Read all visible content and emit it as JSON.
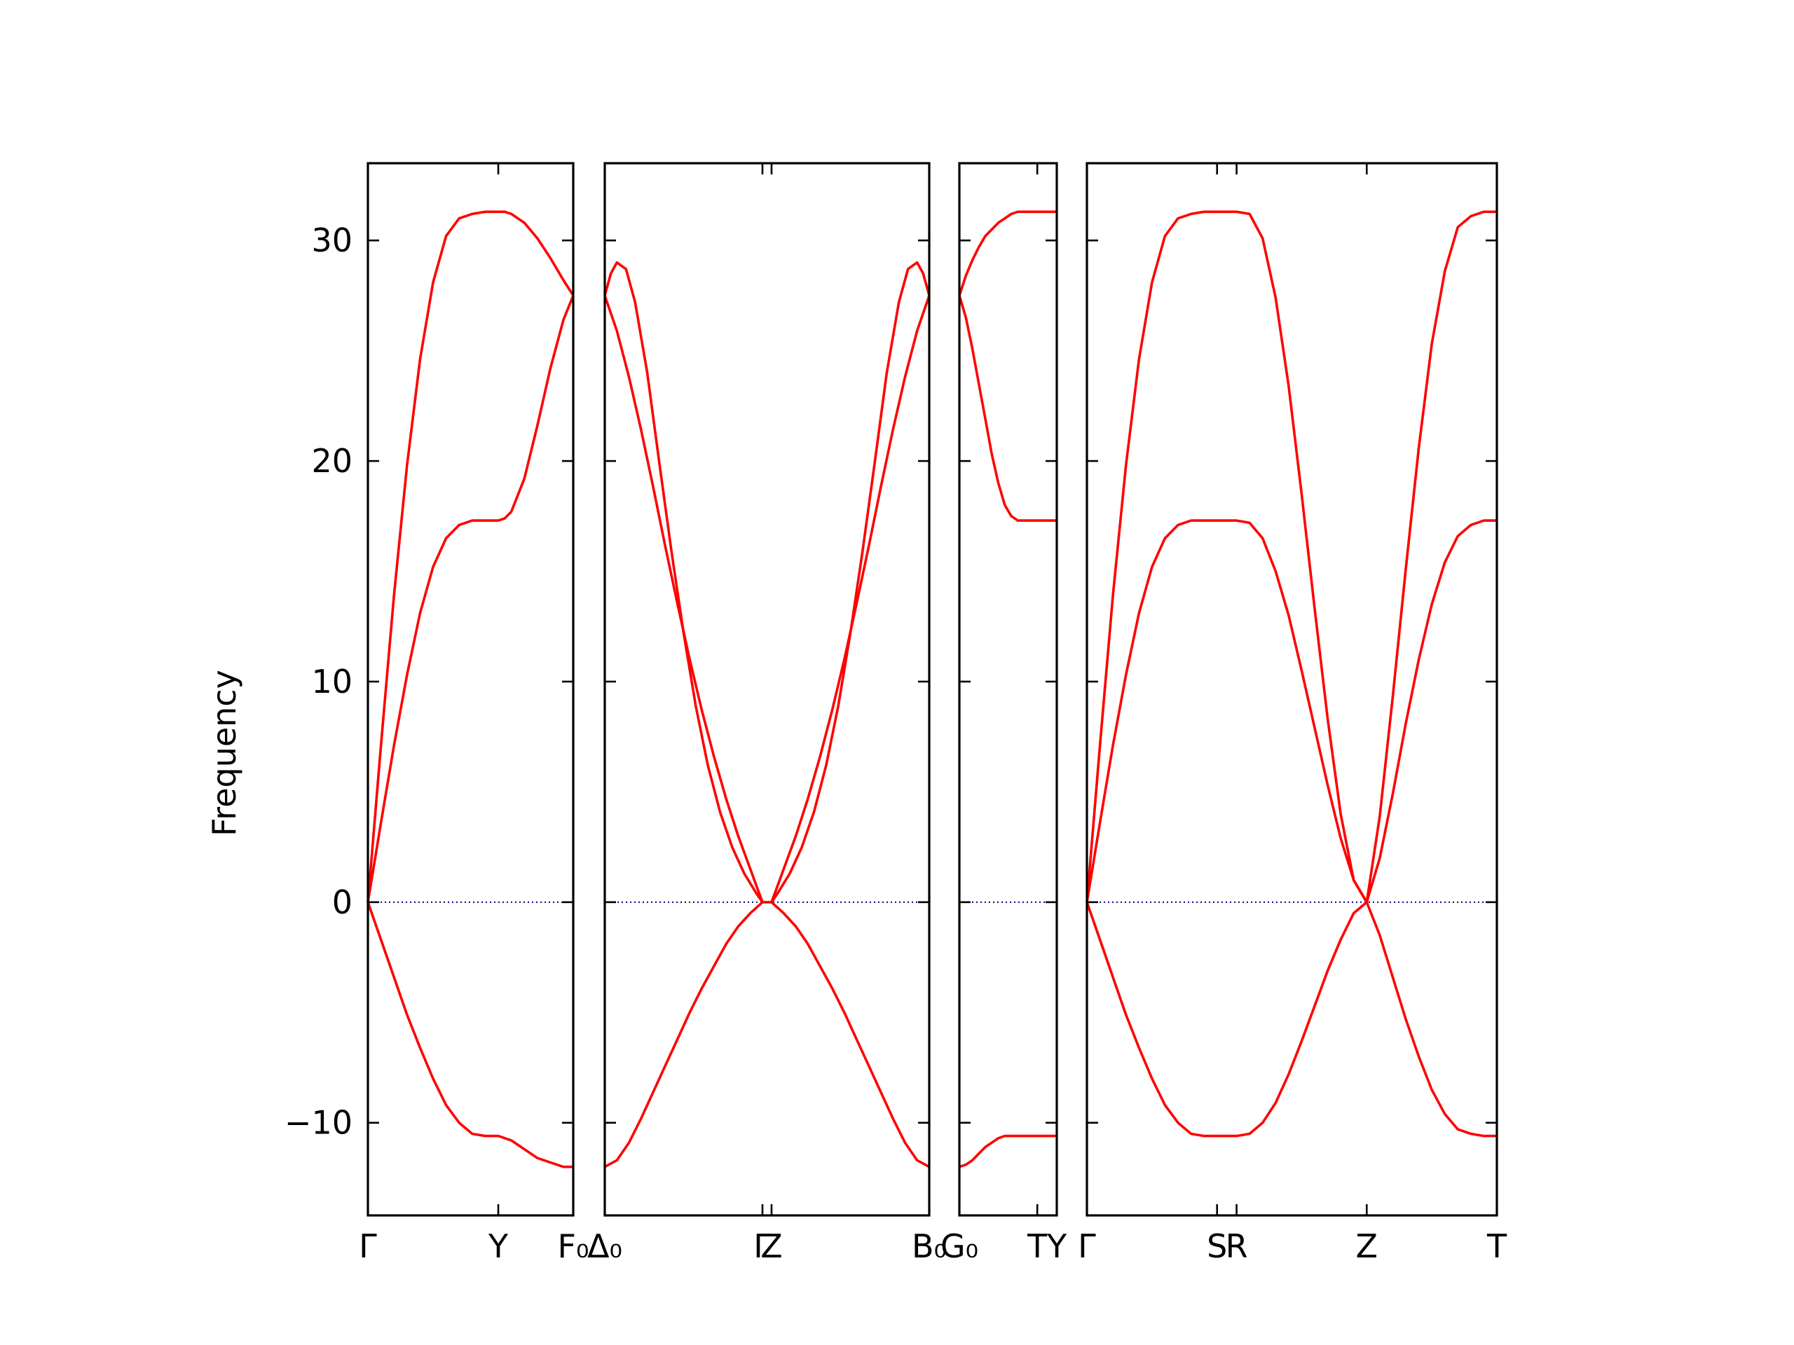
{
  "chart_data": {
    "type": "line",
    "title": "",
    "xlabel": "",
    "ylabel": "Frequency",
    "ylim": [
      -14.2,
      33.5
    ],
    "yticks": [
      -10,
      0,
      10,
      20,
      30
    ],
    "ytick_labels": [
      "−10",
      "0",
      "10",
      "20",
      "30"
    ],
    "grid": false,
    "line_color": "#ff0000",
    "zero_line_color": "#00008b",
    "series": [
      {
        "segment": 1,
        "labels": [
          {
            "x": 0.0,
            "text": "Γ"
          },
          {
            "x": 1.0,
            "text": "Y"
          },
          {
            "x": 1.575,
            "text": "F₀"
          }
        ],
        "bands": [
          {
            "x": [
              0,
              0.1,
              0.2,
              0.3,
              0.4,
              0.5,
              0.6,
              0.7,
              0.8,
              0.9,
              1.0,
              1.05,
              1.1,
              1.2,
              1.3,
              1.4,
              1.5,
              1.575
            ],
            "y": [
              0,
              7.1,
              13.9,
              19.8,
              24.6,
              28.1,
              30.2,
              31.0,
              31.2,
              31.3,
              31.3,
              31.3,
              31.2,
              30.8,
              30.1,
              29.2,
              28.2,
              27.5
            ]
          },
          {
            "x": [
              0,
              0.1,
              0.2,
              0.3,
              0.4,
              0.5,
              0.6,
              0.7,
              0.8,
              0.9,
              1.0,
              1.05,
              1.1,
              1.2,
              1.3,
              1.4,
              1.5,
              1.575
            ],
            "y": [
              0,
              3.6,
              7.1,
              10.3,
              13.1,
              15.2,
              16.5,
              17.1,
              17.3,
              17.3,
              17.3,
              17.4,
              17.7,
              19.2,
              21.6,
              24.2,
              26.4,
              27.5
            ]
          },
          {
            "x": [
              0,
              0.1,
              0.2,
              0.3,
              0.4,
              0.5,
              0.6,
              0.7,
              0.8,
              0.9,
              1.0,
              1.1,
              1.2,
              1.3,
              1.4,
              1.5,
              1.575
            ],
            "y": [
              0,
              -1.7,
              -3.4,
              -5.1,
              -6.6,
              -8.0,
              -9.2,
              -10.0,
              -10.5,
              -10.6,
              -10.6,
              -10.8,
              -11.2,
              -11.6,
              -11.8,
              -12.0,
              -12.0
            ]
          }
        ]
      },
      {
        "segment": 2,
        "labels": [
          {
            "x": 0.0,
            "text": "Δ₀"
          },
          {
            "x": 2.6,
            "text": "Γ"
          },
          {
            "x": 2.75,
            "text": "Z"
          },
          {
            "x": 5.35,
            "text": "B₀"
          }
        ],
        "bands": [
          {
            "x": [
              0,
              0.1,
              0.2,
              0.35,
              0.5,
              0.7,
              0.9,
              1.1,
              1.3,
              1.5,
              1.7,
              1.9,
              2.1,
              2.3,
              2.5,
              2.6
            ],
            "y": [
              27.5,
              28.5,
              29.0,
              28.7,
              27.2,
              24.0,
              19.9,
              15.9,
              12.2,
              8.9,
              6.2,
              4.1,
              2.5,
              1.3,
              0.4,
              0
            ]
          },
          {
            "x": [
              0,
              0.2,
              0.4,
              0.6,
              0.8,
              1.0,
              1.2,
              1.4,
              1.6,
              1.8,
              2.0,
              2.2,
              2.4,
              2.6
            ],
            "y": [
              27.5,
              25.9,
              23.8,
              21.4,
              18.8,
              16.1,
              13.5,
              11.0,
              8.7,
              6.6,
              4.7,
              3.0,
              1.5,
              0
            ]
          },
          {
            "x": [
              0,
              0.2,
              0.4,
              0.6,
              0.8,
              1.0,
              1.2,
              1.4,
              1.6,
              1.8,
              2.0,
              2.2,
              2.4,
              2.6
            ],
            "y": [
              -12.0,
              -11.7,
              -10.9,
              -9.8,
              -8.6,
              -7.4,
              -6.2,
              -5.0,
              -3.9,
              -2.9,
              -1.9,
              -1.1,
              -0.5,
              0
            ]
          },
          {
            "x": [
              2.6,
              2.75
            ],
            "y": [
              0,
              0
            ]
          },
          {
            "x": [
              2.75,
              2.85,
              3.05,
              3.25,
              3.45,
              3.65,
              3.85,
              4.05,
              4.25,
              4.45,
              4.65,
              4.85,
              5.0,
              5.15,
              5.25,
              5.35
            ],
            "y": [
              0,
              0.4,
              1.3,
              2.5,
              4.1,
              6.2,
              8.9,
              12.2,
              15.9,
              19.9,
              24.0,
              27.2,
              28.7,
              29.0,
              28.5,
              27.5
            ]
          },
          {
            "x": [
              2.75,
              2.95,
              3.15,
              3.35,
              3.55,
              3.75,
              3.95,
              4.15,
              4.35,
              4.55,
              4.75,
              4.95,
              5.15,
              5.35
            ],
            "y": [
              0,
              1.5,
              3.0,
              4.7,
              6.6,
              8.7,
              11.0,
              13.5,
              16.1,
              18.8,
              21.4,
              23.8,
              25.9,
              27.5
            ]
          },
          {
            "x": [
              2.75,
              2.95,
              3.15,
              3.35,
              3.55,
              3.75,
              3.95,
              4.15,
              4.35,
              4.55,
              4.75,
              4.95,
              5.15,
              5.35
            ],
            "y": [
              0,
              -0.5,
              -1.1,
              -1.9,
              -2.9,
              -3.9,
              -5.0,
              -6.2,
              -7.4,
              -8.6,
              -9.8,
              -10.9,
              -11.7,
              -12.0
            ]
          }
        ]
      },
      {
        "segment": 3,
        "labels": [
          {
            "x": 0.0,
            "text": "G₀"
          },
          {
            "x": 0.6,
            "text": "T"
          },
          {
            "x": 0.75,
            "text": "Y"
          }
        ],
        "bands": [
          {
            "x": [
              0,
              0.05,
              0.1,
              0.15,
              0.2,
              0.25,
              0.3,
              0.35,
              0.4,
              0.45,
              0.5,
              0.55,
              0.6,
              0.65,
              0.7,
              0.75
            ],
            "y": [
              27.5,
              28.4,
              29.1,
              29.7,
              30.2,
              30.5,
              30.8,
              31.0,
              31.2,
              31.3,
              31.3,
              31.3,
              31.3,
              31.3,
              31.3,
              31.3
            ]
          },
          {
            "x": [
              0,
              0.05,
              0.1,
              0.15,
              0.2,
              0.25,
              0.3,
              0.35,
              0.4,
              0.45,
              0.5,
              0.55,
              0.6,
              0.65,
              0.7,
              0.75
            ],
            "y": [
              27.5,
              26.5,
              25.1,
              23.5,
              21.9,
              20.3,
              19.0,
              18.0,
              17.5,
              17.3,
              17.3,
              17.3,
              17.3,
              17.3,
              17.3,
              17.3
            ]
          },
          {
            "x": [
              0,
              0.05,
              0.1,
              0.15,
              0.2,
              0.25,
              0.3,
              0.35,
              0.4,
              0.45,
              0.5,
              0.55,
              0.6,
              0.65,
              0.7,
              0.75
            ],
            "y": [
              -12.0,
              -11.9,
              -11.7,
              -11.4,
              -11.1,
              -10.9,
              -10.7,
              -10.6,
              -10.6,
              -10.6,
              -10.6,
              -10.6,
              -10.6,
              -10.6,
              -10.6,
              -10.6
            ]
          }
        ]
      },
      {
        "segment": 4,
        "labels": [
          {
            "x": 0.0,
            "text": "Γ"
          },
          {
            "x": 1.0,
            "text": "S"
          },
          {
            "x": 1.15,
            "text": "R"
          },
          {
            "x": 2.15,
            "text": "Z"
          },
          {
            "x": 3.15,
            "text": "T"
          }
        ],
        "bands": [
          {
            "x": [
              0,
              0.1,
              0.2,
              0.3,
              0.4,
              0.5,
              0.6,
              0.7,
              0.8,
              0.9,
              1.0,
              1.15,
              1.25,
              1.35,
              1.45,
              1.55,
              1.65,
              1.75,
              1.85,
              1.95,
              2.05,
              2.15,
              2.25,
              2.35,
              2.45,
              2.55,
              2.65,
              2.75,
              2.85,
              2.95,
              3.05,
              3.15
            ],
            "y": [
              0,
              7.1,
              13.9,
              19.8,
              24.6,
              28.1,
              30.2,
              31.0,
              31.2,
              31.3,
              31.3,
              31.3,
              31.2,
              30.1,
              27.4,
              23.4,
              18.5,
              13.3,
              8.3,
              4.0,
              1.0,
              0,
              3.9,
              9.3,
              15.1,
              20.6,
              25.3,
              28.6,
              30.6,
              31.1,
              31.3,
              31.3
            ]
          },
          {
            "x": [
              0,
              0.1,
              0.2,
              0.3,
              0.4,
              0.5,
              0.6,
              0.7,
              0.8,
              0.9,
              1.0,
              1.15,
              1.25,
              1.35,
              1.45,
              1.55,
              1.65,
              1.75,
              1.85,
              1.95,
              2.05,
              2.15,
              2.25,
              2.35,
              2.45,
              2.55,
              2.65,
              2.75,
              2.85,
              2.95,
              3.05,
              3.15
            ],
            "y": [
              0,
              3.6,
              7.1,
              10.3,
              13.1,
              15.2,
              16.5,
              17.1,
              17.3,
              17.3,
              17.3,
              17.3,
              17.2,
              16.5,
              15.0,
              13.0,
              10.5,
              7.9,
              5.3,
              2.9,
              1.0,
              0,
              2.0,
              4.9,
              8.1,
              11.0,
              13.5,
              15.4,
              16.6,
              17.1,
              17.3,
              17.3
            ]
          },
          {
            "x": [
              0,
              0.1,
              0.2,
              0.3,
              0.4,
              0.5,
              0.6,
              0.7,
              0.8,
              0.9,
              1.0,
              1.15,
              1.25,
              1.35,
              1.45,
              1.55,
              1.65,
              1.75,
              1.85,
              1.95,
              2.05,
              2.15,
              2.25,
              2.35,
              2.45,
              2.55,
              2.65,
              2.75,
              2.85,
              2.95,
              3.05,
              3.15
            ],
            "y": [
              0,
              -1.7,
              -3.4,
              -5.1,
              -6.6,
              -8.0,
              -9.2,
              -10.0,
              -10.5,
              -10.6,
              -10.6,
              -10.6,
              -10.5,
              -10.0,
              -9.1,
              -7.8,
              -6.3,
              -4.7,
              -3.1,
              -1.7,
              -0.5,
              0,
              -1.5,
              -3.4,
              -5.3,
              -7.0,
              -8.5,
              -9.6,
              -10.3,
              -10.5,
              -10.6,
              -10.6
            ]
          }
        ]
      }
    ]
  }
}
